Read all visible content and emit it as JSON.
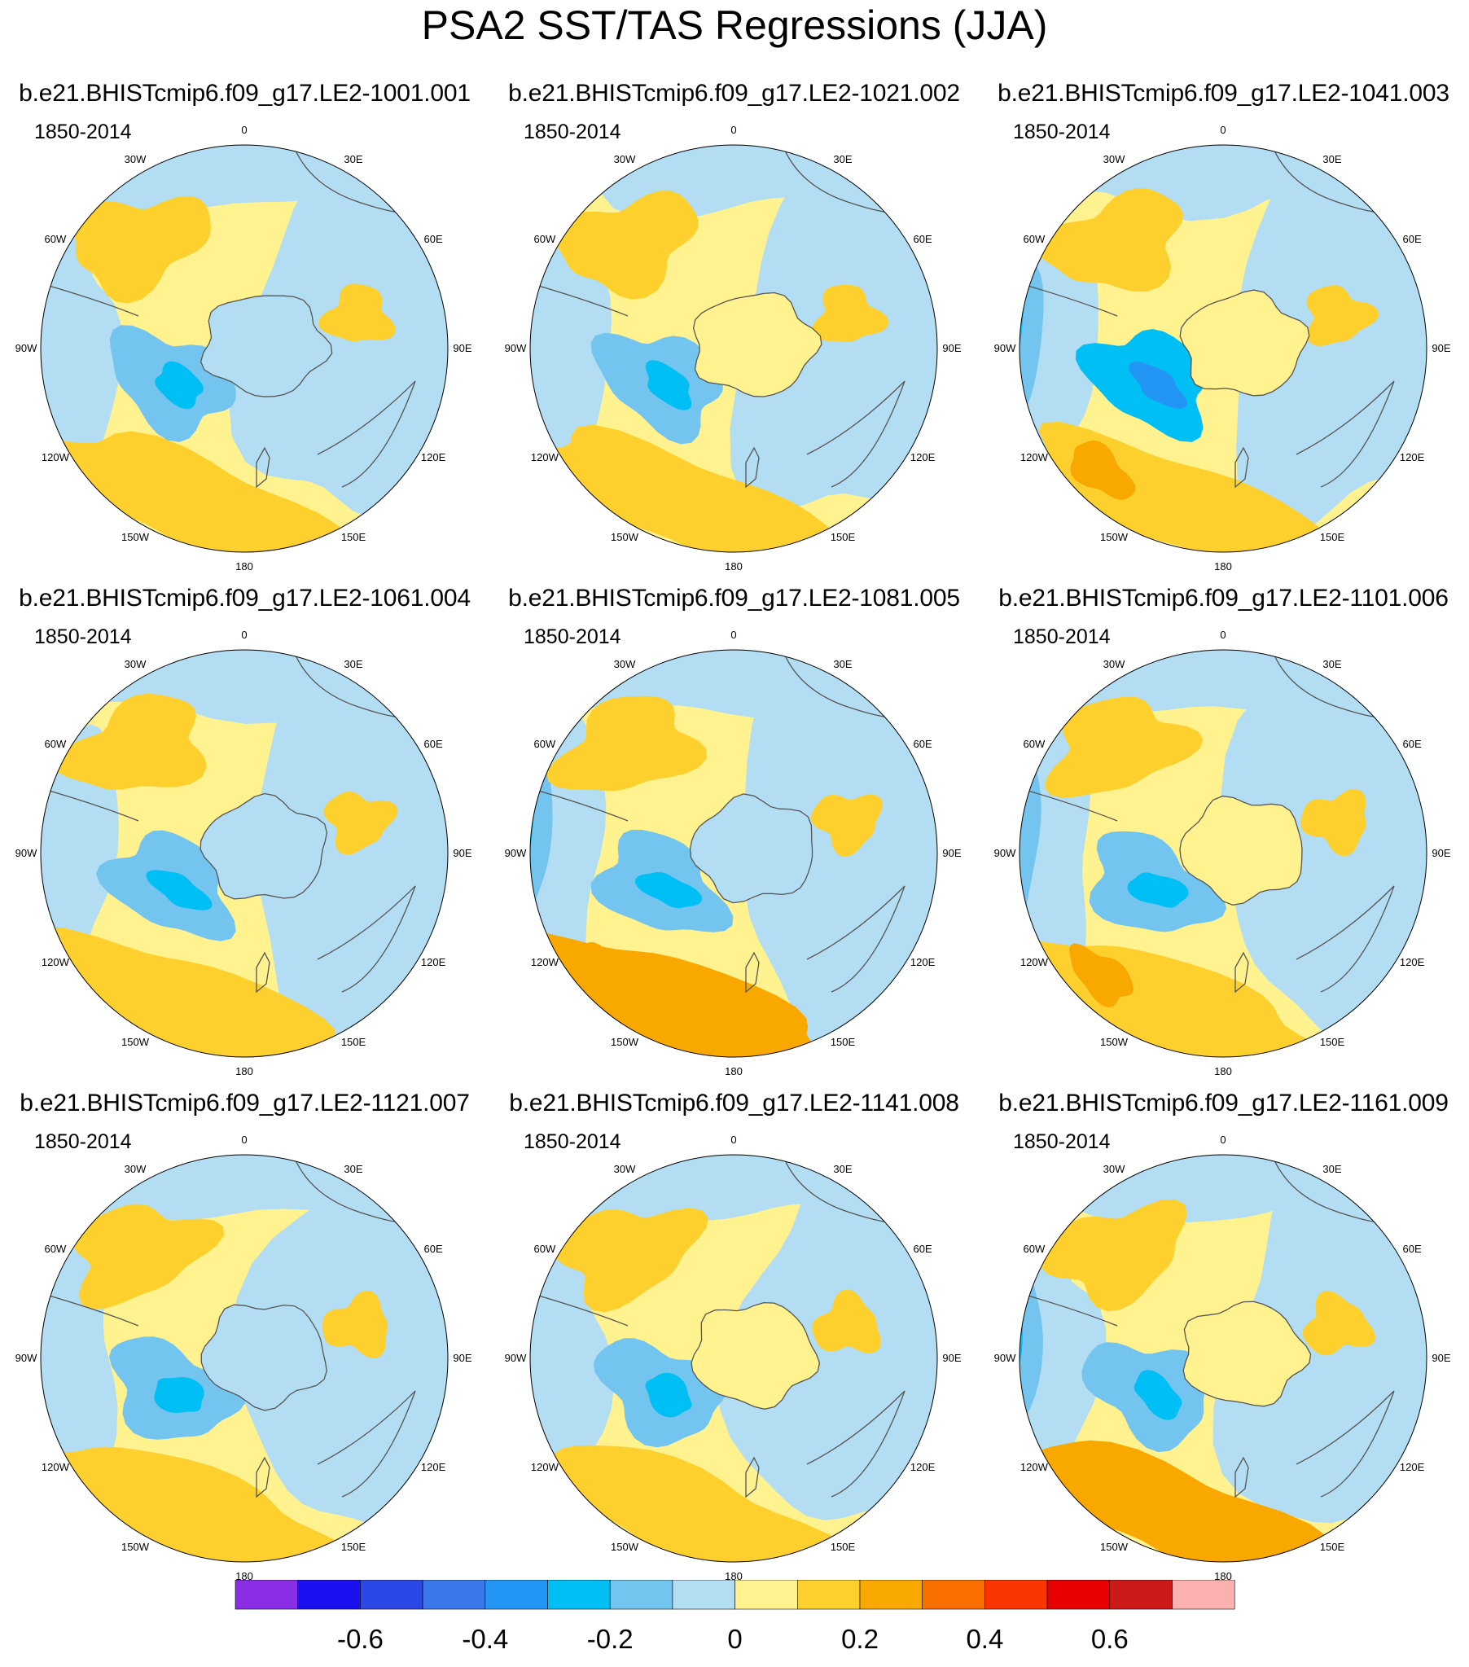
{
  "title": "PSA2 SST/TAS Regressions (JJA)",
  "panels": [
    {
      "run": "b.e21.BHISTcmip6.f09_g17.LE2-1001.001",
      "period": "1850-2014"
    },
    {
      "run": "b.e21.BHISTcmip6.f09_g17.LE2-1021.002",
      "period": "1850-2014"
    },
    {
      "run": "b.e21.BHISTcmip6.f09_g17.LE2-1041.003",
      "period": "1850-2014"
    },
    {
      "run": "b.e21.BHISTcmip6.f09_g17.LE2-1061.004",
      "period": "1850-2014"
    },
    {
      "run": "b.e21.BHISTcmip6.f09_g17.LE2-1081.005",
      "period": "1850-2014"
    },
    {
      "run": "b.e21.BHISTcmip6.f09_g17.LE2-1101.006",
      "period": "1850-2014"
    },
    {
      "run": "b.e21.BHISTcmip6.f09_g17.LE2-1121.007",
      "period": "1850-2014"
    },
    {
      "run": "b.e21.BHISTcmip6.f09_g17.LE2-1141.008",
      "period": "1850-2014"
    },
    {
      "run": "b.e21.BHISTcmip6.f09_g17.LE2-1161.009",
      "period": "1850-2014"
    }
  ],
  "longitude_labels": [
    "0",
    "30E",
    "60E",
    "90E",
    "120E",
    "150E",
    "180",
    "150W",
    "120W",
    "90W",
    "60W",
    "30W"
  ],
  "colorbar": {
    "colors": [
      "#8a2ee6",
      "#1a10f0",
      "#2b48e6",
      "#3a78ea",
      "#2295f5",
      "#00bff5",
      "#74c4f0",
      "#b3ddf2",
      "#fff28f",
      "#fdd02e",
      "#f9a800",
      "#f97000",
      "#fb3500",
      "#e80000",
      "#cc1a1a",
      "#fcb0b0"
    ],
    "tick_labels": [
      "-0.6",
      "-0.4",
      "-0.2",
      "0",
      "0.2",
      "0.4",
      "0.6"
    ]
  }
}
